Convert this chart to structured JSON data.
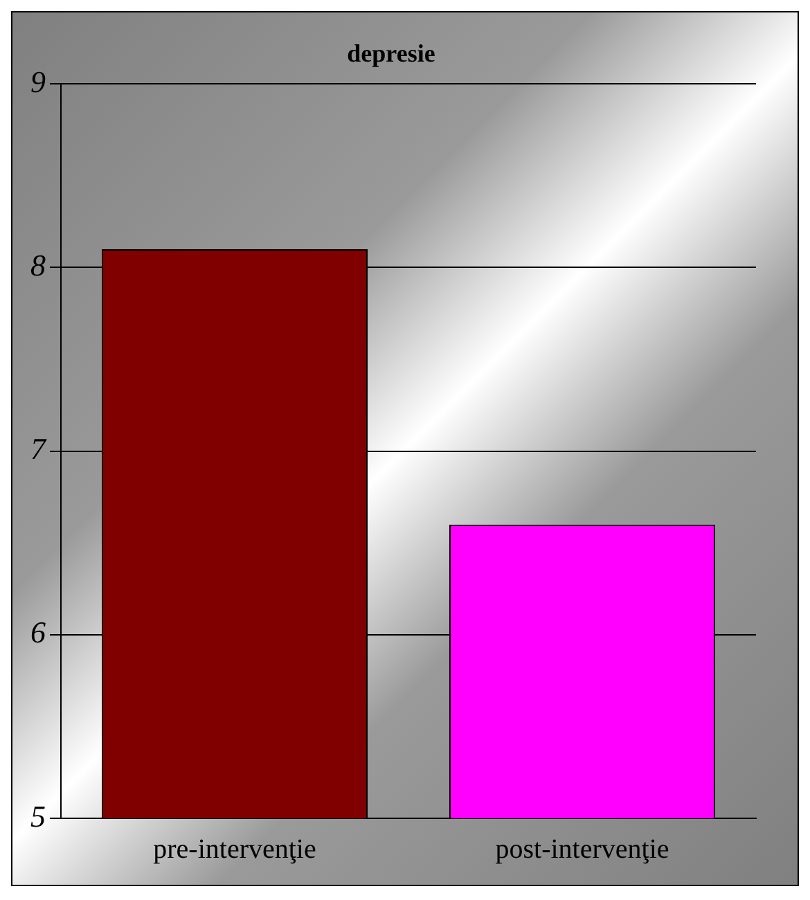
{
  "chart_data": {
    "type": "bar",
    "title": "depresie",
    "categories": [
      "pre-intervenţie",
      "post-intervenţie"
    ],
    "values": [
      8.1,
      6.6
    ],
    "colors": [
      "#800000",
      "#ff00ff"
    ],
    "ylim": [
      5,
      9
    ],
    "yticks": [
      5,
      6,
      7,
      8,
      9
    ],
    "grid": "y",
    "legend": false
  }
}
